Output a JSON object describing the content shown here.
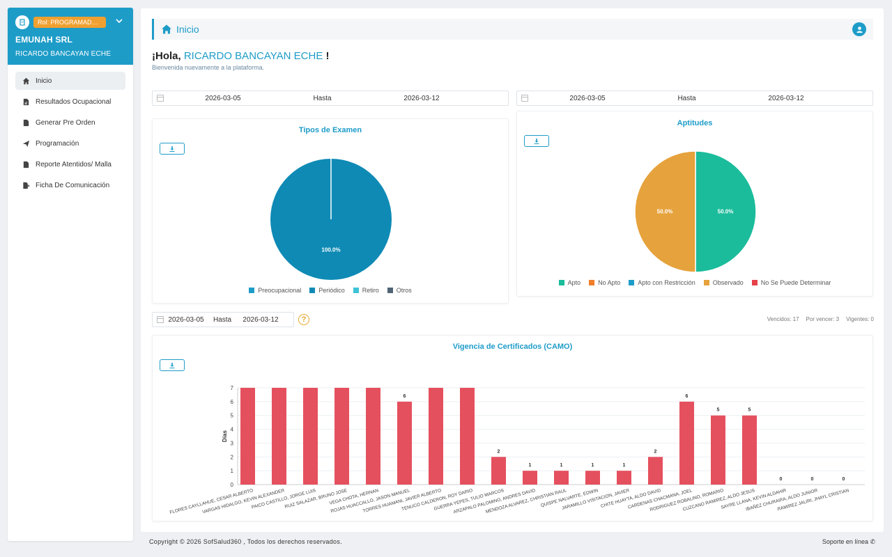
{
  "sidebar": {
    "role": "Rol: PROGRAMADOR,...",
    "company": "EMUNAH SRL",
    "user": "RICARDO BANCAYAN ECHE",
    "items": [
      {
        "label": "Inicio",
        "icon": "home-icon"
      },
      {
        "label": "Resultados Ocupacional",
        "icon": "file-chart-icon"
      },
      {
        "label": "Generar Pre Orden",
        "icon": "file-icon"
      },
      {
        "label": "Programación",
        "icon": "send-icon"
      },
      {
        "label": "Reporte Atentidos/ Malla",
        "icon": "file-icon"
      },
      {
        "label": "Ficha De Comunicación",
        "icon": "file-plus-icon"
      }
    ]
  },
  "header": {
    "title": "Inicio"
  },
  "greeting": {
    "prefix": "¡Hola,",
    "name": "RICARDO BANCAYAN ECHE",
    "suffix": "!",
    "subtitle": "Bienvenida nuevamente a la plataforma."
  },
  "filters": {
    "left": {
      "from": "2026-03-05",
      "sep": "Hasta",
      "to": "2026-03-12"
    },
    "right": {
      "from": "2026-03-05",
      "sep": "Hasta",
      "to": "2026-03-12"
    },
    "bottom": {
      "from": "2026-03-05",
      "sep": "Hasta",
      "to": "2026-03-12"
    }
  },
  "counts": {
    "vencidos": "Vencidos: 17",
    "por_vencer": "Por vencer: 3",
    "vigentes": "Vigentes: 0"
  },
  "colors": {
    "accent": "#1e9cc8",
    "bar": "#e5505e",
    "periodico": "#0e8ab5",
    "apto": "#1bbc9b",
    "observado": "#e6a23c"
  },
  "chart_data": [
    {
      "type": "pie",
      "title": "Tipos de Examen",
      "labels": [
        "Preocupacional",
        "Periódico",
        "Retiro",
        "Otros"
      ],
      "values": [
        0,
        100.0,
        0,
        0
      ],
      "colors": [
        "#1e9cc8",
        "#0e8ab5",
        "#3ec3d8",
        "#4f6475"
      ],
      "data_labels": [
        "",
        "100.0%",
        "",
        ""
      ]
    },
    {
      "type": "pie",
      "title": "Aptitudes",
      "labels": [
        "Apto",
        "No Apto",
        "Apto con Restricción",
        "Observado",
        "No Se Puede Determinar"
      ],
      "values": [
        50.0,
        0,
        0,
        50.0,
        0
      ],
      "colors": [
        "#1bbc9b",
        "#f07f2c",
        "#1e9cc8",
        "#e6a23c",
        "#e5414b"
      ],
      "data_labels": [
        "50.0%",
        "",
        "",
        "50.0%",
        ""
      ]
    },
    {
      "type": "bar",
      "title": "Vigencia de Certificados (CAMO)",
      "ylabel": "Días",
      "ylim": [
        0,
        7
      ],
      "yticks": [
        "0",
        "1",
        "2",
        "3",
        "4",
        "5",
        "6",
        "7"
      ],
      "categories": [
        "FLORES CAYLLAHUE, CESAR ALBERTO",
        "VARGAS HIDALGO, KEVIN ALEXANDER",
        "PAICO CASTILLO, JORGE LUIS",
        "RUIZ SALAZAR, BRUNO JOSE",
        "VEGA CHOTA, HERNAN",
        "ROJAS HUACCALLO, JASON MANUEL",
        "TORRES HUAMANI, JAVIER ALBERTO",
        "TENUCO CALDERON, ROY DARIO",
        "GUERRA YEPES, TULIO MARCOS",
        "ARZAPALO PALOMINO, ANDRES DAVID",
        "MENDOZA ALVAREZ, CHRISTIAN RAUL",
        "QUISPE NALVARTE, EDWIN",
        "JARAMILLO VISITACION, JAVIER",
        "CHITE HUAYTA, ALDO DAVID",
        "CARDENAS CHACMANA, JOEL",
        "RODRIGUEZ ROBALINO, ROMARIO",
        "CUZCANO RAMIREZ, ALDO JESUS",
        "SAYRE LLANA, KEVIN ALDAHIR",
        "IBAÑEZ CHURAIRA, ALDO JUNIOR",
        "RAMIREZ JALIRI, JHAYL CRISTIAN"
      ],
      "values": [
        7,
        7,
        7,
        7,
        7,
        6,
        7,
        7,
        2,
        1,
        1,
        1,
        1,
        2,
        6,
        5,
        5,
        0,
        0,
        0
      ],
      "data_labels": [
        "",
        "",
        "",
        "",
        "",
        "6",
        "",
        "",
        "2",
        "1",
        "1",
        "1",
        "1",
        "2",
        "6",
        "5",
        "5",
        "0",
        "0",
        "0"
      ]
    }
  ],
  "footer": {
    "copyright": "Copyright © 2026 SofSalud360 , Todos los derechos reservados.",
    "support": "Soporte en línea ✆"
  }
}
